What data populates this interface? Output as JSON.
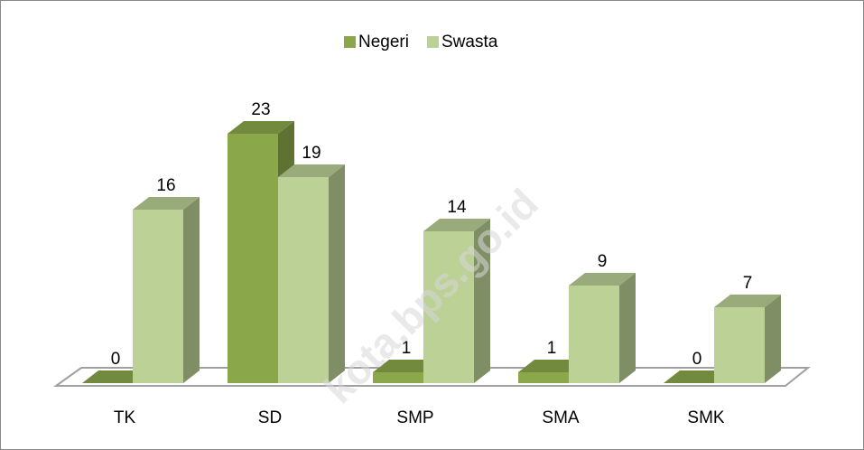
{
  "chart_data": {
    "type": "bar3d",
    "categories": [
      "TK",
      "SD",
      "SMP",
      "SMA",
      "SMK"
    ],
    "series": [
      {
        "name": "Negeri",
        "color": "#8aa84a",
        "values": [
          0,
          23,
          1,
          1,
          0
        ]
      },
      {
        "name": "Swasta",
        "color": "#bcd196",
        "values": [
          16,
          19,
          14,
          9,
          7
        ]
      }
    ],
    "legend": "top",
    "watermark": "kota.bps.go.id"
  }
}
